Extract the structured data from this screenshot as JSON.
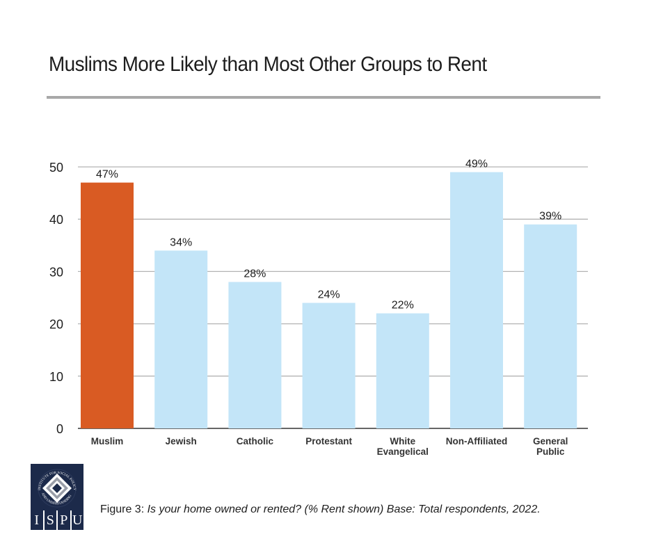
{
  "chart_data": {
    "type": "bar",
    "title": "Muslims More Likely than Most Other Groups to Rent",
    "xlabel": "",
    "ylabel": "",
    "ylim": [
      0,
      50
    ],
    "yticks": [
      0,
      10,
      20,
      30,
      40,
      50
    ],
    "grid": true,
    "categories": [
      "Muslim",
      "Jewish",
      "Catholic",
      "Protestant",
      "White Evangelical",
      "Non-Affiliated",
      "General Public"
    ],
    "category_lines": [
      [
        "Muslim"
      ],
      [
        "Jewish"
      ],
      [
        "Catholic"
      ],
      [
        "Protestant"
      ],
      [
        "White",
        "Evangelical"
      ],
      [
        "Non-Affiliated"
      ],
      [
        "General",
        "Public"
      ]
    ],
    "values": [
      47,
      34,
      28,
      24,
      22,
      49,
      39
    ],
    "data_labels": [
      "47%",
      "34%",
      "28%",
      "24%",
      "22%",
      "49%",
      "39%"
    ],
    "colors": [
      "#d95b23",
      "#c3e5f8",
      "#c3e5f8",
      "#c3e5f8",
      "#c3e5f8",
      "#c3e5f8",
      "#c3e5f8"
    ],
    "highlight": "Muslim"
  },
  "caption": {
    "label": "Figure 3: ",
    "text": "Is your home owned or rented? (% Rent shown) Base: Total respondents, 2022."
  },
  "logo": {
    "arc_text": "INSTITUTE FOR SOCIAL POLICY AND UNDERSTANDING",
    "letters": [
      "I",
      "S",
      "P",
      "U"
    ]
  }
}
